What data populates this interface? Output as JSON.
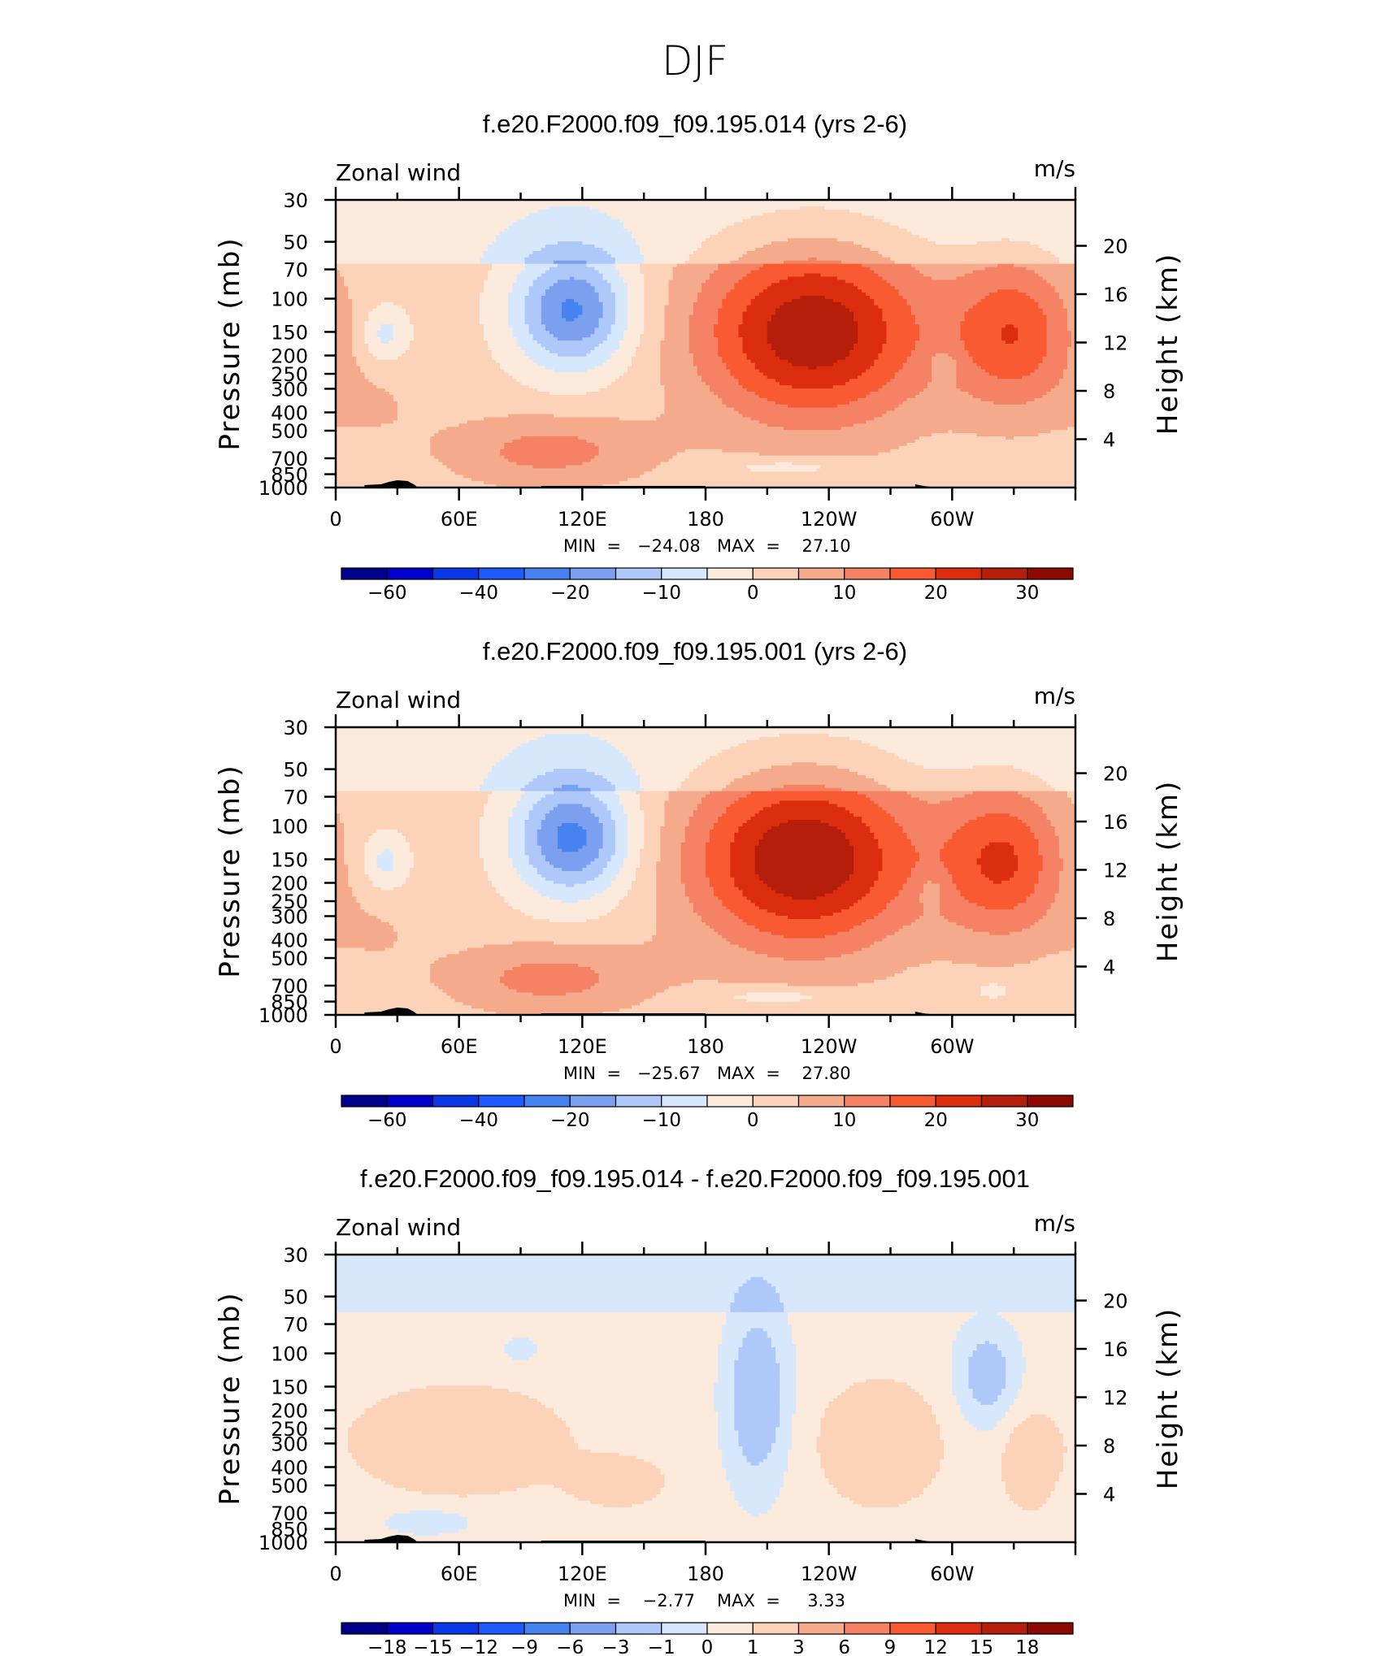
{
  "figure_title": "DJF",
  "colors": {
    "main_palette": [
      "#00008b",
      "#0000cd",
      "#0a37e6",
      "#1e5aff",
      "#4682f0",
      "#7ba0f0",
      "#aec8fa",
      "#d7e8fc",
      "#fcebdc",
      "#fcd2b9",
      "#f5aa8c",
      "#f58264",
      "#fa5a32",
      "#dc2d0f",
      "#b41e0a",
      "#8c0a00"
    ],
    "diff_palette": [
      "#00008b",
      "#0000cd",
      "#0a37e6",
      "#1e5aff",
      "#4682f0",
      "#7ba0f0",
      "#aec8fa",
      "#d7e8fc",
      "#fcebdc",
      "#fcd2b9",
      "#f5aa8c",
      "#f58264",
      "#fa5a32",
      "#dc2d0f",
      "#b41e0a",
      "#8c0a00"
    ],
    "topography": "#000000"
  },
  "chart_data": [
    {
      "type": "heatmap",
      "title": "f.e20.F2000.f09_f09.195.014 (yrs 2-6)",
      "field_label": "Zonal wind",
      "units": "m/s",
      "ylabel": "Pressure (mb)",
      "y2label": "Height (km)",
      "y_ticks": [
        "30",
        "50",
        "70",
        "100",
        "150",
        "200",
        "250",
        "300",
        "400",
        "500",
        "700",
        "850",
        "1000"
      ],
      "y_values": [
        30,
        50,
        70,
        100,
        150,
        200,
        250,
        300,
        400,
        500,
        700,
        850,
        1000
      ],
      "y2_ticks": [
        "20",
        "16",
        "12",
        "8",
        "4"
      ],
      "y2_values": [
        20,
        16,
        12,
        8,
        4
      ],
      "x_ticks": [
        "0",
        "60E",
        "120E",
        "180",
        "120W",
        "60W"
      ],
      "x_values": [
        0,
        60,
        120,
        180,
        240,
        300
      ],
      "xlim": [
        0,
        360
      ],
      "ylim": [
        1000,
        30
      ],
      "min_label": "MIN  =   −24.08",
      "max_label": "MAX  =    27.10",
      "min": -24.08,
      "max": 27.1,
      "colorbar_labels": [
        "−60",
        "−40",
        "−20",
        "−10",
        "0",
        "10",
        "20",
        "30"
      ],
      "colorbar_label_positions": [
        1,
        3,
        5,
        7,
        9,
        11,
        13,
        15
      ],
      "features": [
        {
          "lon": 115,
          "p": 115,
          "value": -23,
          "lon_half_width": 30,
          "log_half_height": 0.33
        },
        {
          "lon": 24,
          "p": 155,
          "value": -9,
          "lon_half_width": 12,
          "log_half_height": 0.16
        },
        {
          "lon": 232,
          "p": 150,
          "value": 27,
          "lon_half_width": 58,
          "log_half_height": 0.5
        },
        {
          "lon": 330,
          "p": 155,
          "value": 17,
          "lon_half_width": 32,
          "log_half_height": 0.42
        },
        {
          "lon": 104,
          "p": 640,
          "value": 10,
          "lon_half_width": 52,
          "log_half_height": 0.2
        },
        {
          "lon": 296,
          "p": 220,
          "value": -5,
          "lon_half_width": 8,
          "log_half_height": 0.1
        },
        {
          "lon": 20,
          "p": 360,
          "value": 3,
          "lon_half_width": 30,
          "log_half_height": 0.25
        },
        {
          "lon": 220,
          "p": 780,
          "value": -6,
          "lon_half_width": 35,
          "log_half_height": 0.05
        }
      ]
    },
    {
      "type": "heatmap",
      "title": "f.e20.F2000.f09_f09.195.001 (yrs 2-6)",
      "field_label": "Zonal wind",
      "units": "m/s",
      "ylabel": "Pressure (mb)",
      "y2label": "Height (km)",
      "y_ticks": [
        "30",
        "50",
        "70",
        "100",
        "150",
        "200",
        "250",
        "300",
        "400",
        "500",
        "700",
        "850",
        "1000"
      ],
      "y_values": [
        30,
        50,
        70,
        100,
        150,
        200,
        250,
        300,
        400,
        500,
        700,
        850,
        1000
      ],
      "y2_ticks": [
        "20",
        "16",
        "12",
        "8",
        "4"
      ],
      "y2_values": [
        20,
        16,
        12,
        8,
        4
      ],
      "x_ticks": [
        "0",
        "60E",
        "120E",
        "180",
        "120W",
        "60W"
      ],
      "x_values": [
        0,
        60,
        120,
        180,
        240,
        300
      ],
      "xlim": [
        0,
        360
      ],
      "ylim": [
        1000,
        30
      ],
      "min_label": "MIN  =   −25.67",
      "max_label": "MAX  =    27.80",
      "min": -25.67,
      "max": 27.8,
      "colorbar_labels": [
        "−60",
        "−40",
        "−20",
        "−10",
        "0",
        "10",
        "20",
        "30"
      ],
      "colorbar_label_positions": [
        1,
        3,
        5,
        7,
        9,
        11,
        13,
        15
      ],
      "features": [
        {
          "lon": 115,
          "p": 115,
          "value": -24,
          "lon_half_width": 30,
          "log_half_height": 0.33
        },
        {
          "lon": 24,
          "p": 155,
          "value": -9,
          "lon_half_width": 12,
          "log_half_height": 0.16
        },
        {
          "lon": 228,
          "p": 150,
          "value": 28,
          "lon_half_width": 58,
          "log_half_height": 0.5
        },
        {
          "lon": 325,
          "p": 155,
          "value": 18,
          "lon_half_width": 32,
          "log_half_height": 0.42
        },
        {
          "lon": 104,
          "p": 640,
          "value": 10,
          "lon_half_width": 52,
          "log_half_height": 0.2
        },
        {
          "lon": 290,
          "p": 220,
          "value": -5,
          "lon_half_width": 8,
          "log_half_height": 0.1
        },
        {
          "lon": 20,
          "p": 360,
          "value": 3,
          "lon_half_width": 30,
          "log_half_height": 0.25
        },
        {
          "lon": 215,
          "p": 800,
          "value": -6,
          "lon_half_width": 35,
          "log_half_height": 0.05
        },
        {
          "lon": 320,
          "p": 740,
          "value": -6,
          "lon_half_width": 8,
          "log_half_height": 0.05
        }
      ]
    },
    {
      "type": "heatmap",
      "title": "f.e20.F2000.f09_f09.195.014 - f.e20.F2000.f09_f09.195.001",
      "field_label": "Zonal wind",
      "units": "m/s",
      "ylabel": "Pressure (mb)",
      "y2label": "Height (km)",
      "y_ticks": [
        "30",
        "50",
        "70",
        "100",
        "150",
        "200",
        "250",
        "300",
        "400",
        "500",
        "700",
        "850",
        "1000"
      ],
      "y_values": [
        30,
        50,
        70,
        100,
        150,
        200,
        250,
        300,
        400,
        500,
        700,
        850,
        1000
      ],
      "y2_ticks": [
        "20",
        "16",
        "12",
        "8",
        "4"
      ],
      "y2_values": [
        20,
        16,
        12,
        8,
        4
      ],
      "x_ticks": [
        "0",
        "60E",
        "120E",
        "180",
        "120W",
        "60W"
      ],
      "x_values": [
        0,
        60,
        120,
        180,
        240,
        300
      ],
      "xlim": [
        0,
        360
      ],
      "ylim": [
        1000,
        30
      ],
      "min_label": "MIN  =    −2.77",
      "max_label": "MAX  =     3.33",
      "min": -2.77,
      "max": 3.33,
      "colorbar_labels": [
        "−18",
        "−15",
        "−12",
        "−9",
        "−6",
        "−3",
        "−1",
        "0",
        "1",
        "3",
        "6",
        "9",
        "12",
        "15",
        "18"
      ],
      "colorbar_label_positions": [
        1,
        2,
        3,
        4,
        5,
        6,
        7,
        8,
        9,
        10,
        11,
        12,
        13,
        14,
        15
      ],
      "features": [
        {
          "lon": 205,
          "p": 170,
          "value": -2.6,
          "lon_half_width": 16,
          "log_half_height": 0.5
        },
        {
          "lon": 317,
          "p": 130,
          "value": -2.2,
          "lon_half_width": 16,
          "log_half_height": 0.28
        },
        {
          "lon": 265,
          "p": 300,
          "value": 1.8,
          "lon_half_width": 30,
          "log_half_height": 0.33
        },
        {
          "lon": 60,
          "p": 290,
          "value": 1.6,
          "lon_half_width": 55,
          "log_half_height": 0.3
        },
        {
          "lon": 138,
          "p": 480,
          "value": 1.3,
          "lon_half_width": 24,
          "log_half_height": 0.14
        },
        {
          "lon": 45,
          "p": 780,
          "value": -1.5,
          "lon_half_width": 22,
          "log_half_height": 0.07
        },
        {
          "lon": 337,
          "p": 370,
          "value": 1.4,
          "lon_half_width": 14,
          "log_half_height": 0.28
        },
        {
          "lon": 90,
          "p": 95,
          "value": -1.5,
          "lon_half_width": 8,
          "log_half_height": 0.06
        }
      ]
    }
  ]
}
